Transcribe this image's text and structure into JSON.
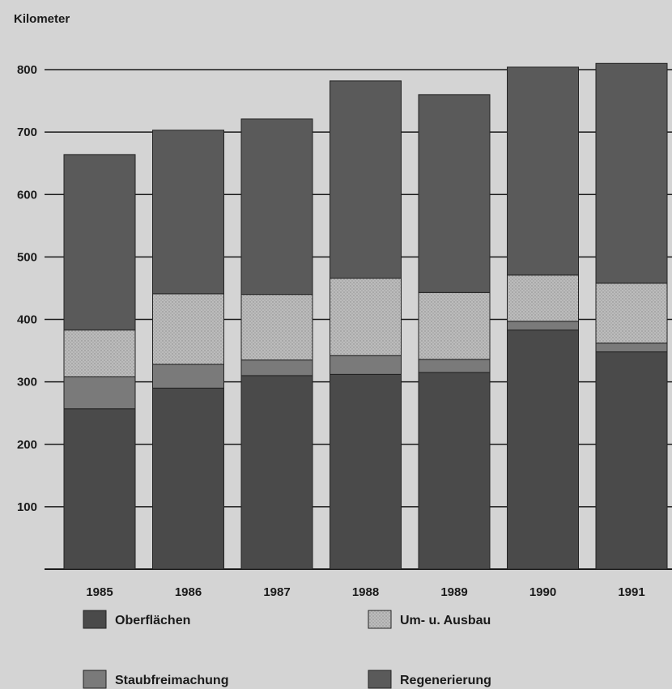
{
  "chart_data": {
    "type": "bar",
    "stacked": true,
    "ylabel": "Kilometer",
    "ylim": [
      0,
      800
    ],
    "yticks": [
      100,
      200,
      300,
      400,
      500,
      600,
      700,
      800
    ],
    "grid": true,
    "legend_position": "bottom",
    "categories": [
      "1985",
      "1986",
      "1987",
      "1988",
      "1989",
      "1990",
      "1991"
    ],
    "series": [
      {
        "name": "Oberflächen",
        "color": "#4a4a4a",
        "values": [
          257,
          290,
          310,
          312,
          315,
          383,
          348
        ]
      },
      {
        "name": "Staubfreimachung",
        "color": "#7a7a7a",
        "values": [
          51,
          38,
          25,
          30,
          21,
          14,
          14
        ]
      },
      {
        "name": "Um- u. Ausbau",
        "color": "#b8b8b8",
        "values": [
          75,
          113,
          105,
          124,
          107,
          74,
          96
        ]
      },
      {
        "name": "Regenerierung",
        "color": "#5a5a5a",
        "values": [
          281,
          262,
          281,
          316,
          317,
          333,
          352
        ]
      }
    ],
    "totals": [
      664,
      703,
      721,
      782,
      760,
      804,
      810
    ]
  }
}
